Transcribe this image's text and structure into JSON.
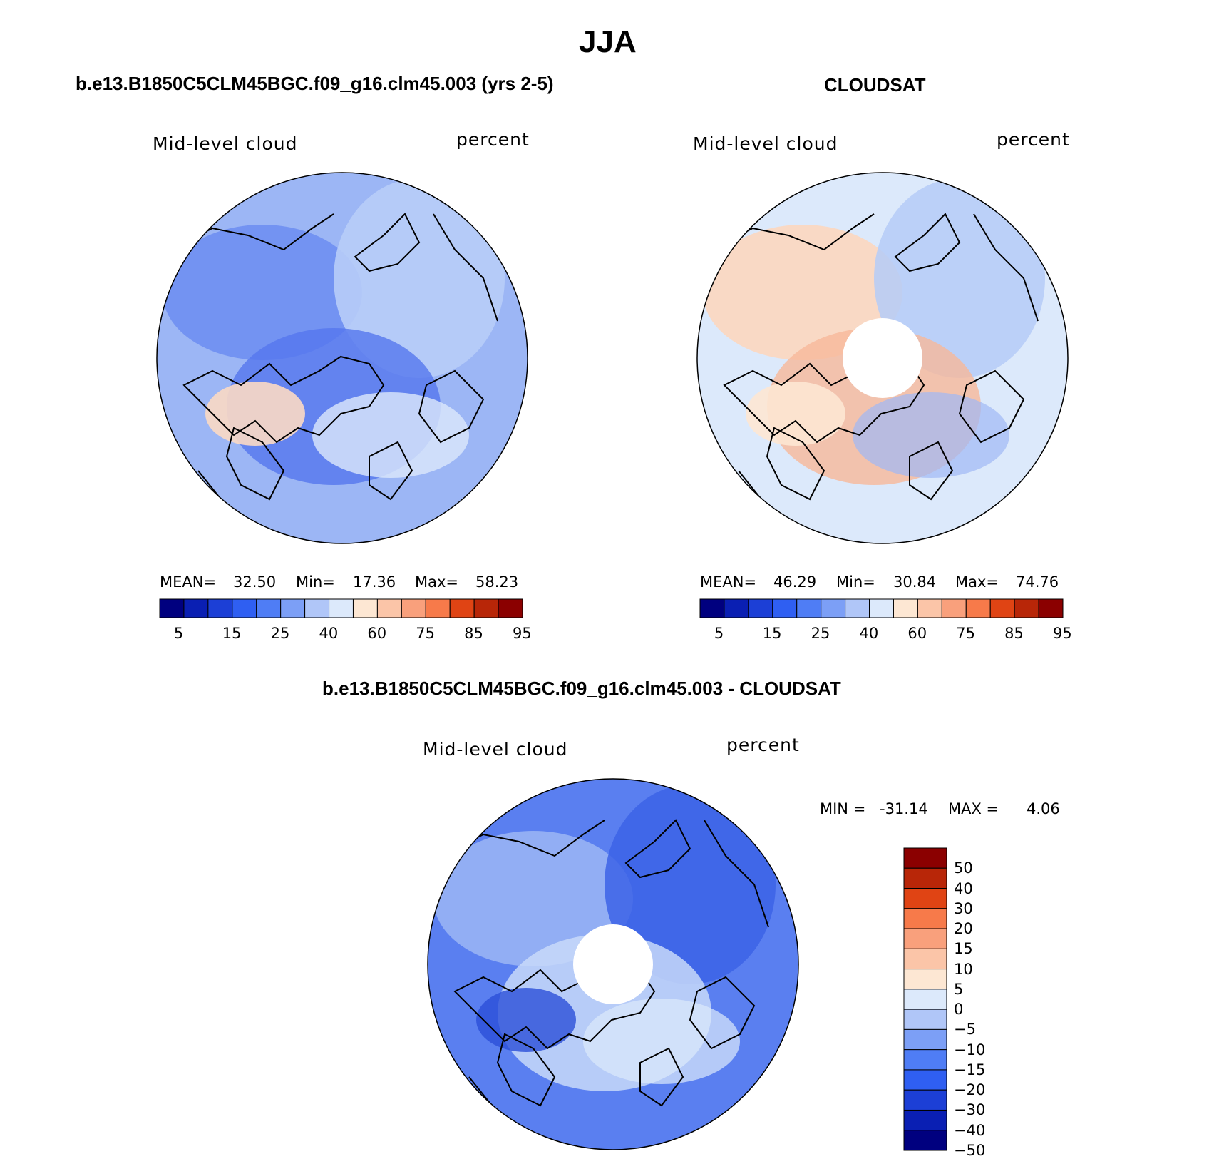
{
  "figure": {
    "title": "JJA"
  },
  "panels": [
    {
      "title": "b.e13.B1850C5CLM45BGC.f09_g16.clm45.003 (yrs 2-5)",
      "variable": "Mid-level cloud",
      "units": "percent",
      "stats": [
        {
          "label": "MEAN=",
          "value": "32.50"
        },
        {
          "label": "Min=",
          "value": "17.36"
        },
        {
          "label": "Max=",
          "value": "58.23"
        }
      ]
    },
    {
      "title": "CLOUDSAT",
      "variable": "Mid-level cloud",
      "units": "percent",
      "stats": [
        {
          "label": "MEAN=",
          "value": "46.29"
        },
        {
          "label": "Min=",
          "value": "30.84"
        },
        {
          "label": "Max=",
          "value": "74.76"
        }
      ]
    },
    {
      "title": "b.e13.B1850C5CLM45BGC.f09_g16.clm45.003 - CLOUDSAT",
      "variable": "Mid-level cloud",
      "units": "percent",
      "minmax": {
        "min_label": "MIN =",
        "min": "-31.14",
        "max_label": "MAX =",
        "max": "4.06"
      }
    }
  ],
  "colorbar_abs": {
    "colors": [
      "#00007f",
      "#0a1fb3",
      "#1c3fd6",
      "#2f5ff2",
      "#4f7df5",
      "#7c9ff6",
      "#b0c6f8",
      "#dce9fb",
      "#fde7d3",
      "#fbc5a8",
      "#f9a07c",
      "#f77a4a",
      "#e04414",
      "#b82608",
      "#8b0000"
    ],
    "labels": [
      "5",
      "15",
      "25",
      "40",
      "60",
      "75",
      "85",
      "95"
    ]
  },
  "colorbar_diff": {
    "colors": [
      "#00007f",
      "#0a1fb3",
      "#1c3fd6",
      "#2f5ff2",
      "#4f7df5",
      "#7c9ff6",
      "#b0c6f8",
      "#dce9fb",
      "#fde7d3",
      "#fbc5a8",
      "#f9a07c",
      "#f77a4a",
      "#e04414",
      "#b82608",
      "#8b0000"
    ],
    "labels": [
      "50",
      "40",
      "30",
      "20",
      "15",
      "10",
      "5",
      "0",
      "−5",
      "−10",
      "−15",
      "−20",
      "−30",
      "−40",
      "−50"
    ]
  },
  "maps": [
    {
      "base": "#9cb6f5",
      "pole_hole": false,
      "blobs": [
        {
          "c": "#6f8ff2",
          "a": 0.9
        },
        {
          "c": "#b8cdf8",
          "a": 0.9
        },
        {
          "c": "#5577ee",
          "a": 0.8
        },
        {
          "c": "#fbd9c4",
          "a": 0.9
        },
        {
          "c": "#dce9fb",
          "a": 0.8
        }
      ]
    },
    {
      "base": "#dce9fb",
      "pole_hole": true,
      "blobs": [
        {
          "c": "#fcd7bf",
          "a": 0.9
        },
        {
          "c": "#b5cbf7",
          "a": 0.85
        },
        {
          "c": "#f8b89a",
          "a": 0.8
        },
        {
          "c": "#fde7d3",
          "a": 0.9
        },
        {
          "c": "#9fb8f5",
          "a": 0.7
        }
      ]
    },
    {
      "base": "#5a7ff0",
      "pole_hole": true,
      "blobs": [
        {
          "c": "#9cb6f5",
          "a": 0.85
        },
        {
          "c": "#3c63e6",
          "a": 0.85
        },
        {
          "c": "#c8d9f9",
          "a": 0.85
        },
        {
          "c": "#2a4fd8",
          "a": 0.8
        },
        {
          "c": "#dce9fb",
          "a": 0.7
        }
      ]
    }
  ]
}
